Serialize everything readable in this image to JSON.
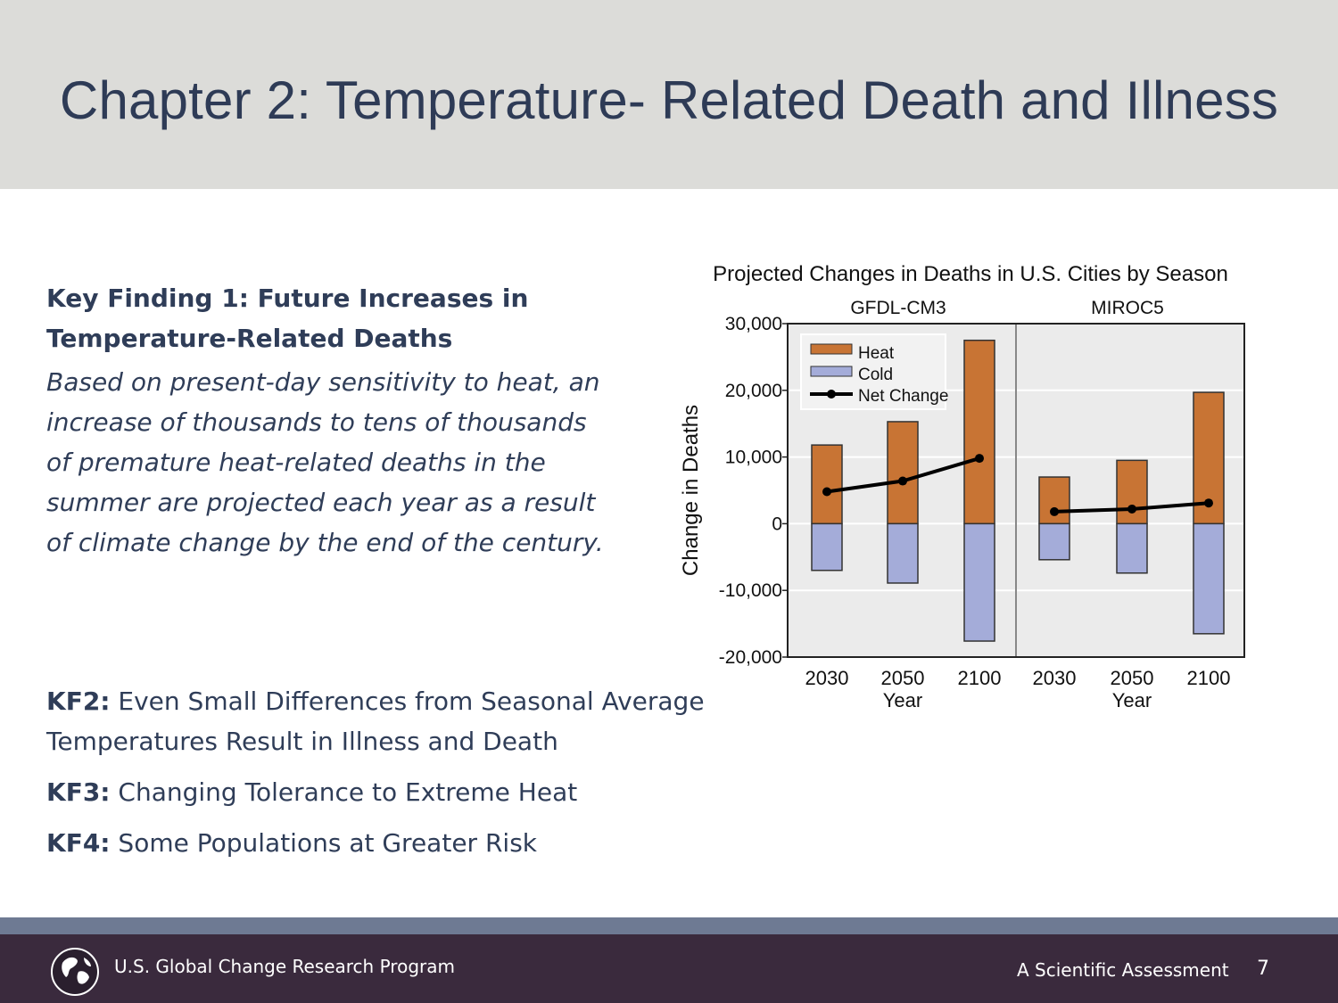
{
  "slide": {
    "title": "Chapter 2: Temperature- Related Death and Illness",
    "kf1": {
      "heading": "Key Finding 1: Future Increases in Temperature-Related Deaths",
      "body": "Based on present-day sensitivity to heat, an increase of thousands to tens of thousands of premature heat-related deaths in the summer are projected each year as a result of climate change by the end of the century."
    },
    "kf2": {
      "label": "KF2:",
      "text": "Even Small Differences from Seasonal Average Temperatures Result in Illness and Death"
    },
    "kf3": {
      "label": "KF3:",
      "text": "Changing Tolerance to Extreme Heat"
    },
    "kf4": {
      "label": "KF4:",
      "text": "Some Populations at Greater Risk"
    }
  },
  "footer": {
    "org": "U.S. Global Change Research Program",
    "assessment": "A Scientific Assessment",
    "page_number": "7",
    "logo_icon": "globe-icon"
  },
  "colors": {
    "title": "#2e3b56",
    "body_text": "#2f3d58",
    "heat": "#c87434",
    "cold": "#a4acd9",
    "net": "#000000",
    "plot_bg": "#ebebeb",
    "footer_bg": "#3a2a3d",
    "footer_band": "#6e7a93"
  },
  "chart_data": {
    "type": "bar",
    "title": "Projected Changes in Deaths in U.S. Cities by Season",
    "ylabel": "Change in Deaths",
    "xlabel": "Year",
    "ylim": [
      -20000,
      30000
    ],
    "yticks": [
      30000,
      20000,
      10000,
      0,
      -10000,
      -20000
    ],
    "ytick_labels": [
      "30,000",
      "20,000",
      "10,000",
      "0",
      "-10,000",
      "-20,000"
    ],
    "legend": {
      "position": "top-left",
      "entries": [
        "Heat",
        "Cold",
        "Net Change"
      ]
    },
    "panels": [
      {
        "name": "GFDL-CM3",
        "categories": [
          "2030",
          "2050",
          "2100"
        ],
        "series": [
          {
            "name": "Heat",
            "values": [
              11800,
              15300,
              27500
            ]
          },
          {
            "name": "Cold",
            "values": [
              -7000,
              -8900,
              -17600
            ]
          },
          {
            "name": "Net Change",
            "values": [
              4800,
              6400,
              9800
            ]
          }
        ]
      },
      {
        "name": "MIROC5",
        "categories": [
          "2030",
          "2050",
          "2100"
        ],
        "series": [
          {
            "name": "Heat",
            "values": [
              7000,
              9500,
              19700
            ]
          },
          {
            "name": "Cold",
            "values": [
              -5400,
              -7400,
              -16500
            ]
          },
          {
            "name": "Net Change",
            "values": [
              1800,
              2200,
              3100
            ]
          }
        ]
      }
    ]
  }
}
